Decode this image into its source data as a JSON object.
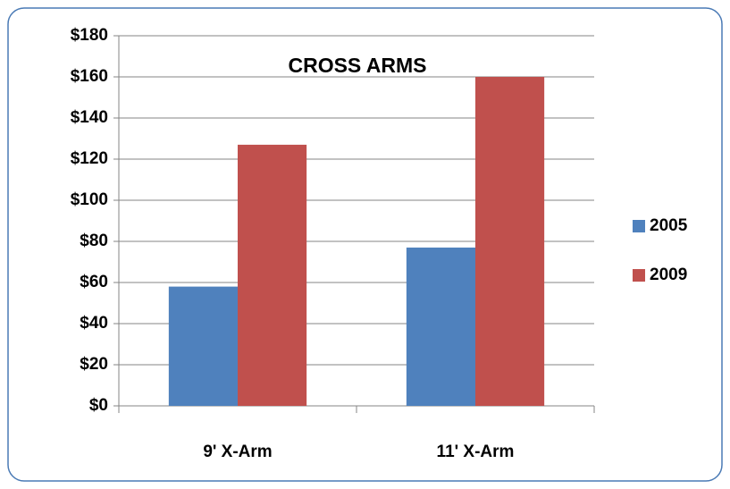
{
  "chart_data": {
    "type": "bar",
    "title": "CROSS ARMS",
    "categories": [
      "9' X-Arm",
      "11' X-Arm"
    ],
    "series": [
      {
        "name": "2005",
        "color": "#4f81bd",
        "values": [
          58,
          77
        ]
      },
      {
        "name": "2009",
        "color": "#c0504d",
        "values": [
          127,
          160
        ]
      }
    ],
    "ylim": [
      0,
      180
    ],
    "yticks": [
      {
        "value": 0,
        "label": "$0"
      },
      {
        "value": 20,
        "label": "$20"
      },
      {
        "value": 40,
        "label": "$40"
      },
      {
        "value": 60,
        "label": "$60"
      },
      {
        "value": 80,
        "label": "$80"
      },
      {
        "value": 100,
        "label": "$100"
      },
      {
        "value": 120,
        "label": "$120"
      },
      {
        "value": 140,
        "label": "$140"
      },
      {
        "value": 160,
        "label": "$160"
      },
      {
        "value": 180,
        "label": "$180"
      }
    ],
    "grid": true,
    "legend": "right"
  }
}
